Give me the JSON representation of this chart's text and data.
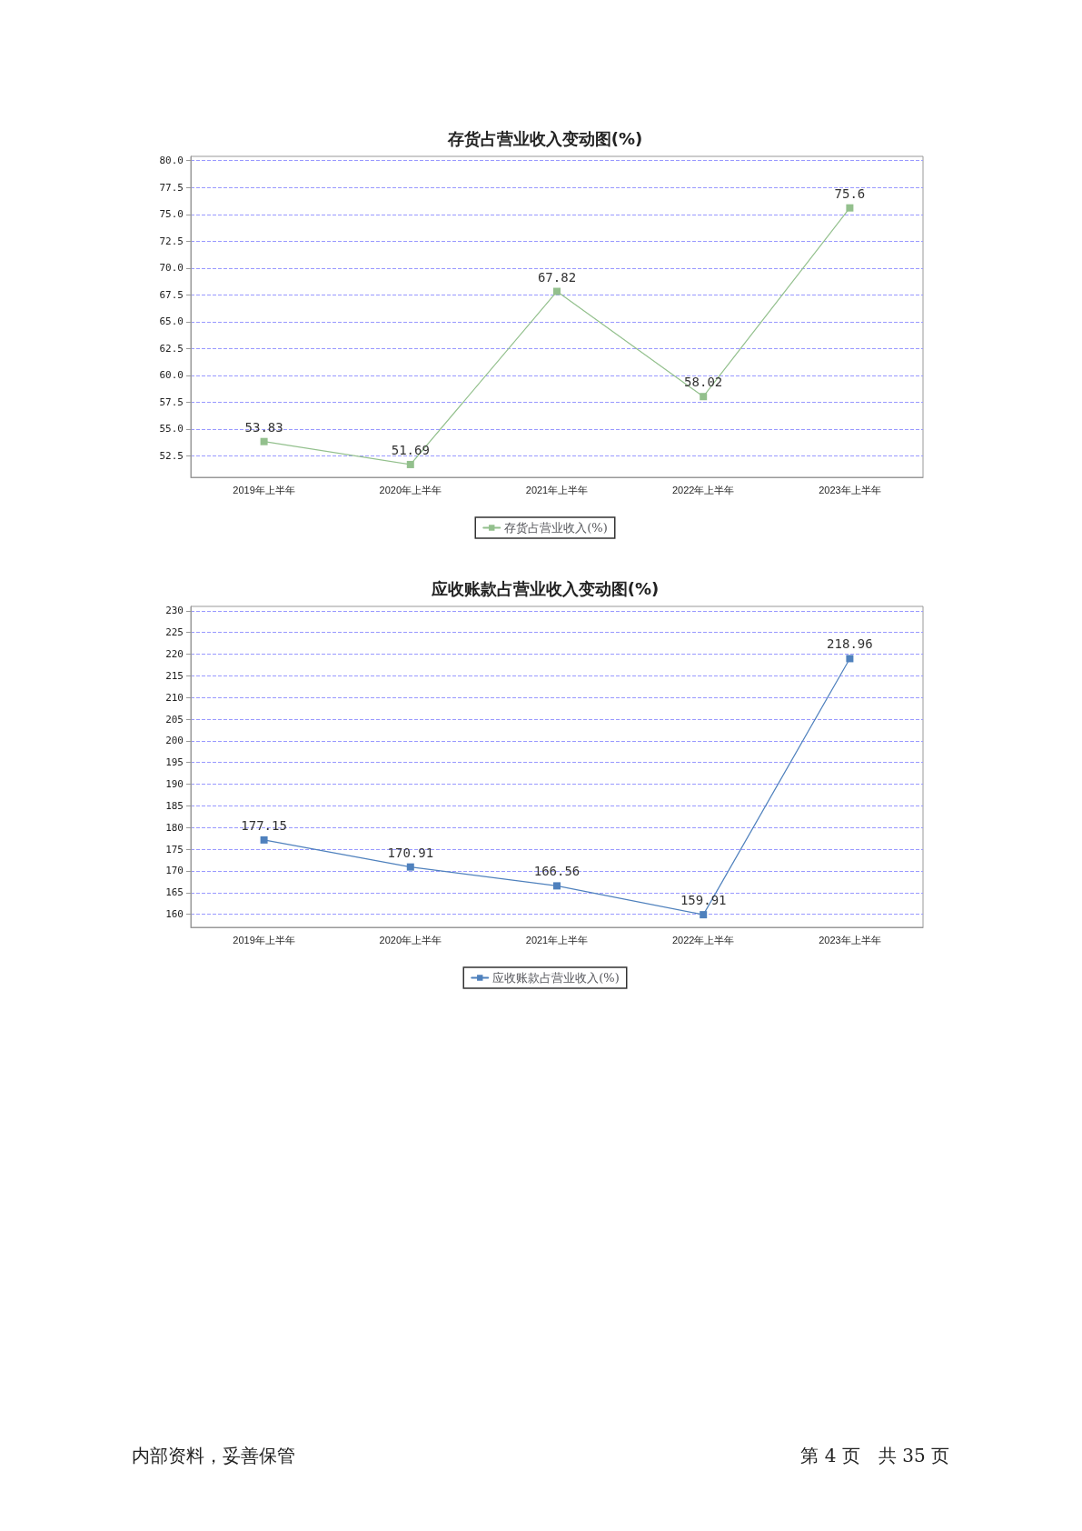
{
  "chart_data": [
    {
      "type": "line",
      "title": "存货占营业收入变动图(%)",
      "categories": [
        "2019年上半年",
        "2020年上半年",
        "2021年上半年",
        "2022年上半年",
        "2023年上半年"
      ],
      "series": [
        {
          "name": "存货占营业收入(%)",
          "color": "#93c08d",
          "values": [
            53.83,
            51.69,
            67.82,
            58.02,
            75.6
          ]
        }
      ],
      "ylim": [
        50.5,
        80.4
      ],
      "yticks": [
        52.5,
        {
          "value": 55,
          "label": "55.0"
        },
        57.5,
        {
          "value": 60,
          "label": "60.0"
        },
        62.5,
        {
          "value": 65,
          "label": "65.0"
        },
        67.5,
        {
          "value": 70,
          "label": "70.0"
        },
        72.5,
        {
          "value": 75,
          "label": "75.0"
        },
        77.5,
        {
          "value": 80,
          "label": "80.0"
        }
      ],
      "grid": "y",
      "legend": "bottom",
      "marker": "square",
      "line_style": "solid",
      "data_labels": true
    },
    {
      "type": "line",
      "title": "应收账款占营业收入变动图(%)",
      "categories": [
        "2019年上半年",
        "2020年上半年",
        "2021年上半年",
        "2022年上半年",
        "2023年上半年"
      ],
      "series": [
        {
          "name": "应收账款占营业收入(%)",
          "color": "#4f81bd",
          "values": [
            177.15,
            170.91,
            166.56,
            159.91,
            218.96
          ]
        }
      ],
      "ylim": [
        157,
        231
      ],
      "yticks": [
        160,
        165,
        170,
        175,
        180,
        185,
        190,
        195,
        200,
        205,
        210,
        215,
        220,
        225,
        230
      ],
      "grid": "y",
      "legend": "bottom",
      "marker": "square",
      "line_style": "solid",
      "data_labels": true,
      "annotations": [
        "内部资料，妥善保管",
        "第 4 页　共 35 页"
      ]
    }
  ]
}
